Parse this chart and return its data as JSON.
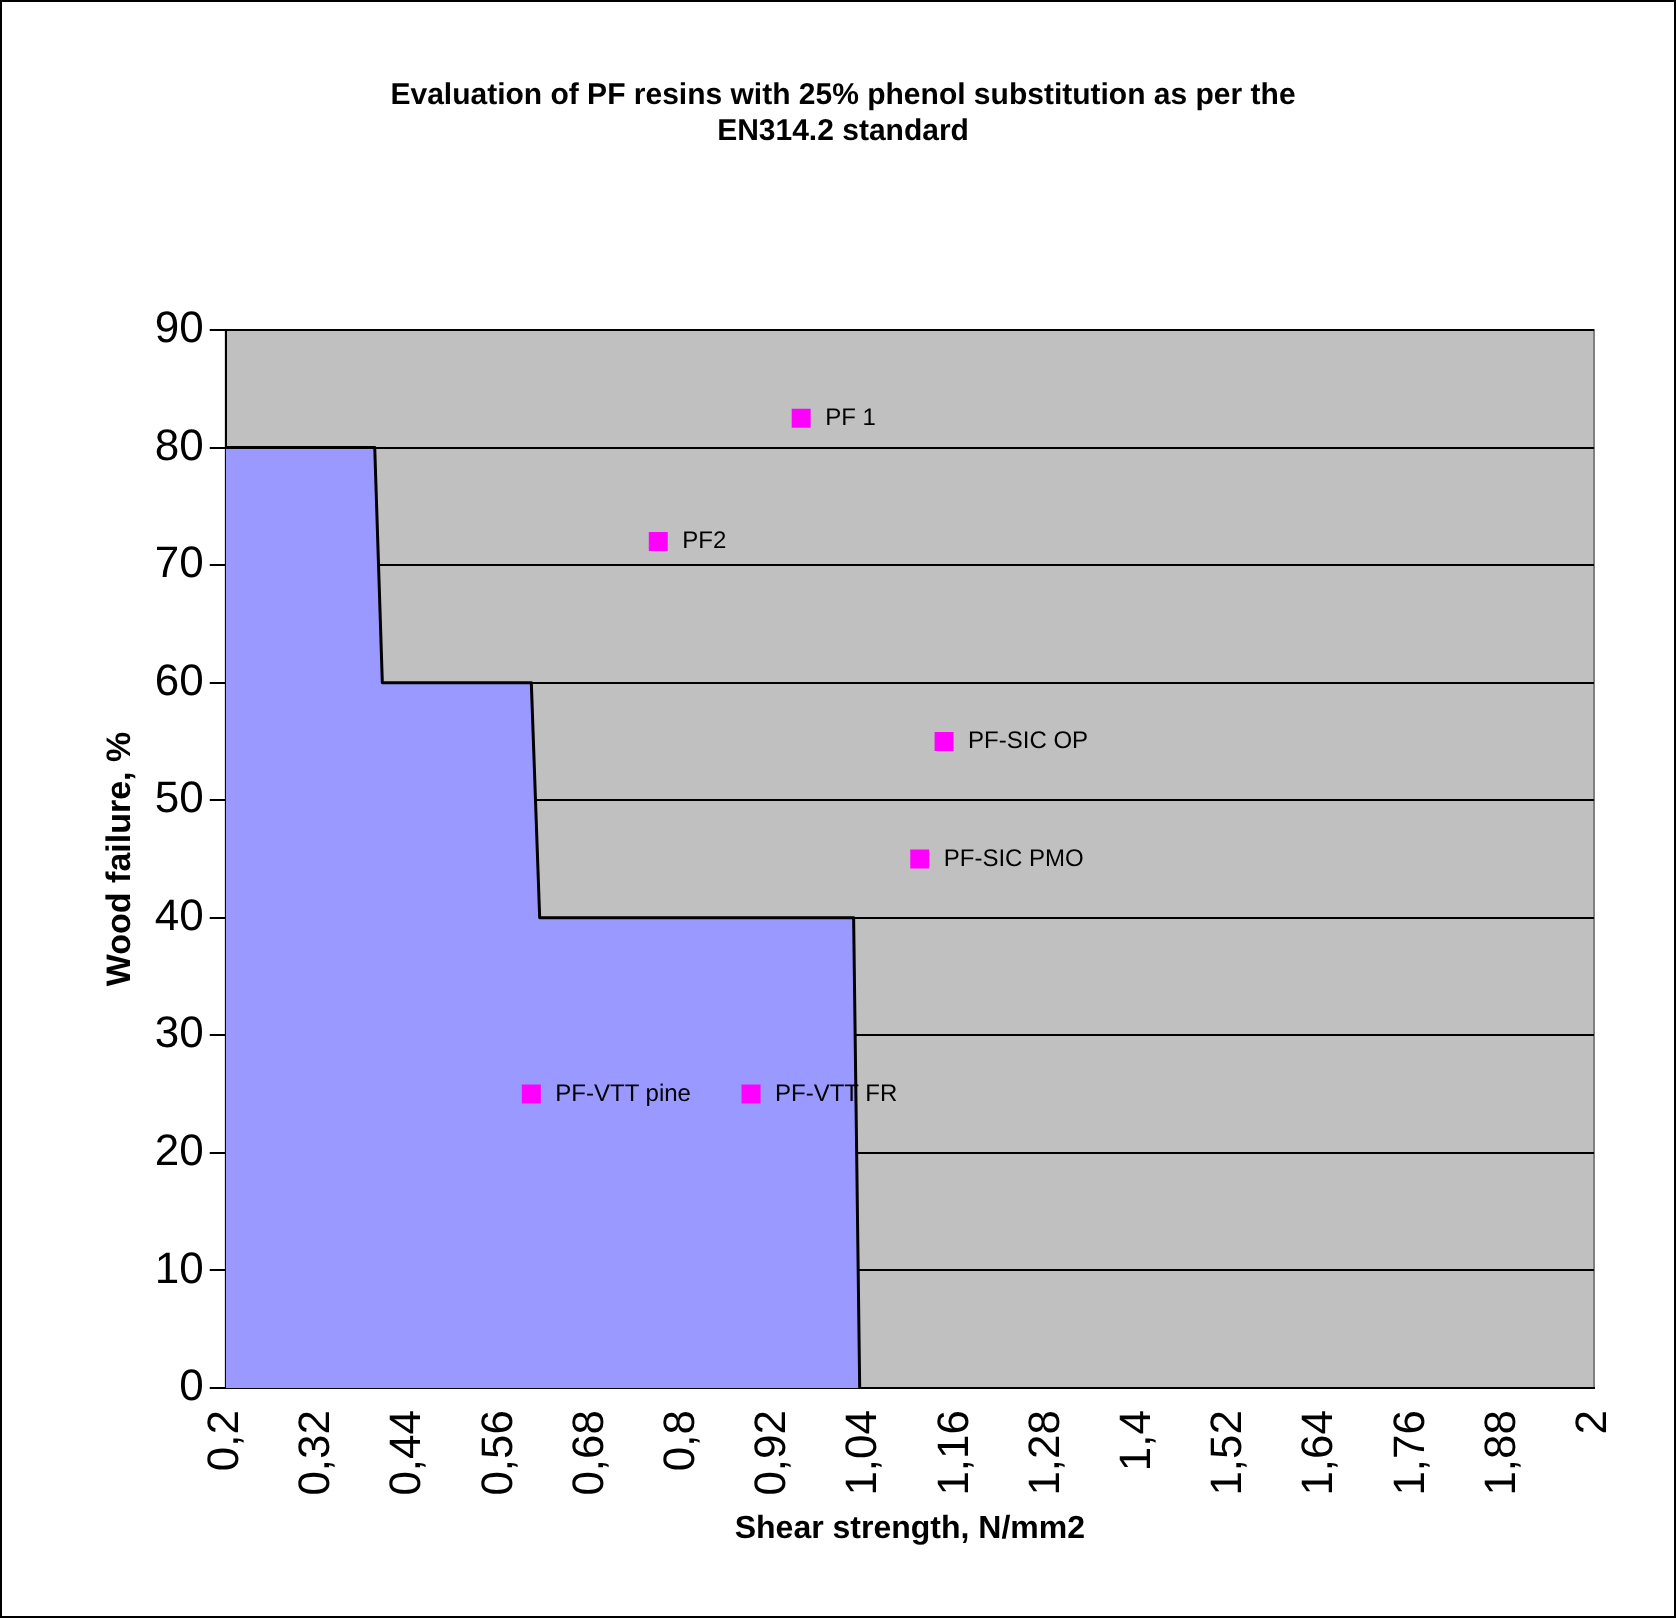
{
  "chart_data": {
    "type": "area",
    "title": [
      "Evaluation of PF resins with 25% phenol substitution as per the",
      "EN314.2 standard"
    ],
    "xlabel": "Shear strength, N/mm2",
    "ylabel": "Wood failure, %",
    "series": [
      {
        "color": "#9999ff",
        "x": [
          0.2,
          0.396,
          0.406,
          0.602,
          0.613,
          1.026,
          1.034
        ],
        "values": [
          80,
          80,
          60,
          60,
          40,
          40,
          0
        ]
      },
      {
        "type": "scatter",
        "marker": "square",
        "color": "#ff00ff",
        "x": [
          0.957,
          0.769,
          1.145,
          1.113,
          0.602,
          0.891
        ],
        "values": [
          82.5,
          72,
          55,
          45,
          25,
          25
        ]
      }
    ],
    "xlim": [
      0.2,
      2
    ],
    "ylim": [
      0,
      90
    ],
    "xticks": [
      {
        "value": 0.2,
        "label": "0,2"
      },
      {
        "value": 0.32,
        "label": "0,32"
      },
      {
        "value": 0.44,
        "label": "0,44"
      },
      {
        "value": 0.56,
        "label": "0,56"
      },
      {
        "value": 0.68,
        "label": "0,68"
      },
      {
        "value": 0.8,
        "label": "0,8"
      },
      {
        "value": 0.92,
        "label": "0,92"
      },
      {
        "value": 1.04,
        "label": "1,04"
      },
      {
        "value": 1.16,
        "label": "1,16"
      },
      {
        "value": 1.28,
        "label": "1,28"
      },
      {
        "value": 1.4,
        "label": "1,4"
      },
      {
        "value": 1.52,
        "label": "1,52"
      },
      {
        "value": 1.64,
        "label": "1,64"
      },
      {
        "value": 1.76,
        "label": "1,76"
      },
      {
        "value": 1.88,
        "label": "1,88"
      },
      {
        "value": 2,
        "label": "2"
      }
    ],
    "yticks": [
      0,
      10,
      20,
      30,
      40,
      50,
      60,
      70,
      80,
      90
    ],
    "grid": "y",
    "legend": false,
    "annotations": [
      {
        "text": "PF 1",
        "x": 0.957,
        "y": 82.5
      },
      {
        "text": "PF2",
        "x": 0.769,
        "y": 72
      },
      {
        "text": "PF-SIC OP",
        "x": 1.145,
        "y": 55
      },
      {
        "text": "PF-SIC PMO",
        "x": 1.113,
        "y": 45
      },
      {
        "text": "PF-VTT pine",
        "x": 0.602,
        "y": 25
      },
      {
        "text": "PF-VTT FR",
        "x": 0.891,
        "y": 25
      }
    ]
  }
}
